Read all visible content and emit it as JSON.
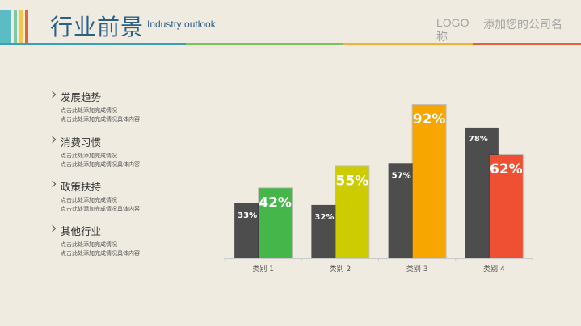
{
  "header": {
    "title": "行业前景",
    "subtitle": "Industry outlook",
    "logo": "LOGO\n称",
    "company": "添加您的公司名"
  },
  "colors": {
    "background": "#efebe1",
    "title": "#2a5f86",
    "stripes": [
      "#5bbcc5",
      "#7ec9a5",
      "#f2c84b",
      "#e4633f"
    ],
    "header_bar": [
      "#3a9ec2",
      "#7cc15f",
      "#f2b233",
      "#e4633f"
    ]
  },
  "sidebar": {
    "items": [
      {
        "title": "发展趋势",
        "lines": [
          "点击此处添加完成情况",
          "点击此处添加完成情况具体内容"
        ]
      },
      {
        "title": "消费习惯",
        "lines": [
          "点击此处添加完成情况",
          "点击此处添加完成情况具体内容"
        ]
      },
      {
        "title": "政策扶持",
        "lines": [
          "点击此处添加完成情况",
          "点击此处添加完成情况具体内容"
        ]
      },
      {
        "title": "其他行业",
        "lines": [
          "点击此处添加完成情况",
          "点击此处添加完成情况具体内容"
        ]
      }
    ]
  },
  "chart_data": {
    "type": "bar",
    "categories": [
      "类别 1",
      "类别 2",
      "类别 3",
      "类别 4"
    ],
    "series": [
      {
        "values": [
          33,
          32,
          57,
          78
        ],
        "labels": [
          "33%",
          "32%",
          "57%",
          "78%"
        ],
        "color": "#4d4d4d"
      },
      {
        "values": [
          42,
          55,
          92,
          62
        ],
        "labels": [
          "42%",
          "55%",
          "92%",
          "62%"
        ],
        "colors": [
          "#45b649",
          "#cccc00",
          "#f7a600",
          "#ef5033"
        ]
      }
    ],
    "ylim": [
      0,
      100
    ],
    "grid": false,
    "legend": "none"
  }
}
